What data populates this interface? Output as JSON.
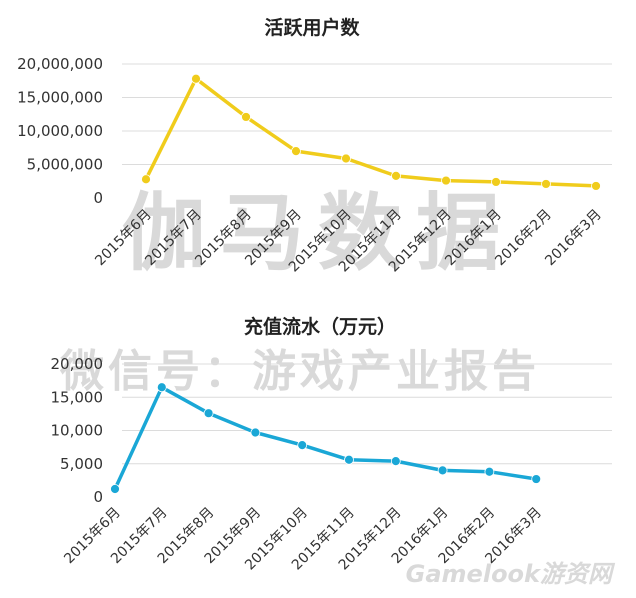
{
  "watermarks": {
    "large": "伽马数据",
    "wechat": "微信号：游戏产业报告",
    "site": "Gamelook游资网"
  },
  "chart_data": [
    {
      "type": "line",
      "title": "活跃用户数",
      "categories": [
        "2015年6月",
        "2015年7月",
        "2015年8月",
        "2015年9月",
        "2015年10月",
        "2015年11月",
        "2015年12月",
        "2016年1月",
        "2016年2月",
        "2016年3月"
      ],
      "series": [
        {
          "values": [
            2800000,
            17800000,
            12100000,
            7000000,
            5900000,
            3300000,
            2600000,
            2400000,
            2100000,
            1800000
          ]
        }
      ],
      "yticks": [
        "0",
        "5,000,000",
        "10,000,000",
        "15,000,000",
        "20,000,000"
      ],
      "ylim": [
        0,
        20000000
      ],
      "grid": true,
      "color": "#f0cc1c"
    },
    {
      "type": "line",
      "title": "充值流水（万元）",
      "categories": [
        "2015年6月",
        "2015年7月",
        "2015年8月",
        "2015年9月",
        "2015年10月",
        "2015年11月",
        "2015年12月",
        "2016年1月",
        "2016年2月",
        "2016年3月"
      ],
      "series": [
        {
          "values": [
            1200,
            16500,
            12600,
            9700,
            7800,
            5600,
            5400,
            4000,
            3800,
            2700
          ]
        }
      ],
      "yticks": [
        "0",
        "5,000",
        "10,000",
        "15,000",
        "20,000"
      ],
      "ylim": [
        0,
        20000
      ],
      "grid": true,
      "color": "#1aa7d6"
    }
  ]
}
